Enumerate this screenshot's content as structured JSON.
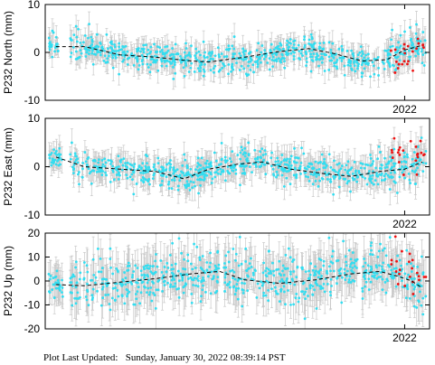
{
  "chart_data": [
    {
      "type": "scatter",
      "station": "P232",
      "ylabel": "P232 North (mm)",
      "ylim": [
        -10,
        10
      ],
      "yticks": [
        10,
        0,
        -10
      ],
      "xtick_label": "2022",
      "colors": {
        "points": "#33ddf0",
        "recent": "#ee1111",
        "errorbars": "#c8c8c8",
        "trend": "#000000"
      },
      "trend": [
        [
          2012.2,
          1.2
        ],
        [
          2013.0,
          1.2
        ],
        [
          2014.0,
          -0.5
        ],
        [
          2015.0,
          -1.0
        ],
        [
          2016.0,
          -1.8
        ],
        [
          2016.5,
          -2.0
        ],
        [
          2017.5,
          -1.0
        ],
        [
          2018.5,
          0.2
        ],
        [
          2019.3,
          0.8
        ],
        [
          2020.0,
          -0.2
        ],
        [
          2020.8,
          -1.8
        ],
        [
          2021.5,
          -1.5
        ],
        [
          2022.0,
          0.5
        ],
        [
          2022.5,
          1.5
        ]
      ],
      "sections": [
        {
          "x": [
            2012.0,
            2012.3
          ],
          "center": 2.5,
          "spread": 1.2,
          "err": 1.8,
          "color": "points"
        },
        {
          "x": [
            2012.6,
            2017.5
          ],
          "center": -1.0,
          "spread": 1.5,
          "err": 2.0,
          "color": "points"
        },
        {
          "x": [
            2017.5,
            2021.3
          ],
          "center": -0.5,
          "spread": 1.4,
          "err": 2.0,
          "color": "points"
        },
        {
          "x": [
            2021.3,
            2022.6
          ],
          "center": 1.0,
          "spread": 1.8,
          "err": 2.2,
          "color": "points"
        },
        {
          "x": [
            2021.6,
            2022.6
          ],
          "center": -0.5,
          "spread": 2.0,
          "err": 2.0,
          "color": "recent"
        }
      ]
    },
    {
      "type": "scatter",
      "station": "P232",
      "ylabel": "P232 East (mm)",
      "ylim": [
        -10,
        10
      ],
      "yticks": [
        10,
        0,
        -10
      ],
      "xtick_label": "2022",
      "colors": {
        "points": "#33ddf0",
        "recent": "#ee1111",
        "errorbars": "#c8c8c8",
        "trend": "#000000"
      },
      "trend": [
        [
          2012.2,
          2.0
        ],
        [
          2013.0,
          0.0
        ],
        [
          2014.0,
          -0.5
        ],
        [
          2015.0,
          -1.0
        ],
        [
          2015.8,
          -2.5
        ],
        [
          2016.5,
          -0.5
        ],
        [
          2017.3,
          0.5
        ],
        [
          2018.0,
          1.0
        ],
        [
          2018.8,
          -0.5
        ],
        [
          2019.8,
          -1.5
        ],
        [
          2020.5,
          -2.0
        ],
        [
          2021.3,
          -1.0
        ],
        [
          2022.0,
          -0.5
        ],
        [
          2022.5,
          1.0
        ]
      ],
      "sections": [
        {
          "x": [
            2012.0,
            2012.4
          ],
          "center": 2.2,
          "spread": 1.2,
          "err": 2.0,
          "color": "points"
        },
        {
          "x": [
            2012.6,
            2017.5
          ],
          "center": -1.0,
          "spread": 1.5,
          "err": 2.2,
          "color": "points"
        },
        {
          "x": [
            2017.5,
            2021.5
          ],
          "center": -0.5,
          "spread": 1.5,
          "err": 2.2,
          "color": "points"
        },
        {
          "x": [
            2021.5,
            2022.6
          ],
          "center": 0.5,
          "spread": 1.8,
          "err": 2.4,
          "color": "points"
        },
        {
          "x": [
            2021.6,
            2022.6
          ],
          "center": 1.5,
          "spread": 2.2,
          "err": 2.2,
          "color": "recent"
        }
      ]
    },
    {
      "type": "scatter",
      "station": "P232",
      "ylabel": "P232 Up (mm)",
      "ylim": [
        -20,
        20
      ],
      "yticks": [
        20,
        10,
        0,
        -10,
        -20
      ],
      "xtick_label": "2022",
      "colors": {
        "points": "#33ddf0",
        "recent": "#ee1111",
        "errorbars": "#c8c8c8",
        "trend": "#000000"
      },
      "trend": [
        [
          2012.2,
          -1.5
        ],
        [
          2013.0,
          -2.0
        ],
        [
          2014.0,
          -0.5
        ],
        [
          2015.0,
          1.0
        ],
        [
          2016.0,
          3.0
        ],
        [
          2016.8,
          4.0
        ],
        [
          2017.5,
          0.5
        ],
        [
          2018.5,
          -1.0
        ],
        [
          2019.5,
          0.5
        ],
        [
          2020.5,
          3.0
        ],
        [
          2021.3,
          4.0
        ],
        [
          2021.8,
          2.0
        ],
        [
          2022.2,
          0.0
        ],
        [
          2022.5,
          -3.0
        ]
      ],
      "sections": [
        {
          "x": [
            2012.0,
            2012.4
          ],
          "center": -3.0,
          "spread": 3.0,
          "err": 6.0,
          "color": "points"
        },
        {
          "x": [
            2012.6,
            2017.5
          ],
          "center": 0.0,
          "spread": 5.0,
          "err": 7.0,
          "color": "points"
        },
        {
          "x": [
            2017.5,
            2021.5
          ],
          "center": 3.0,
          "spread": 5.0,
          "err": 7.0,
          "color": "points"
        },
        {
          "x": [
            2021.5,
            2022.6
          ],
          "center": 3.0,
          "spread": 5.0,
          "err": 7.0,
          "color": "points"
        },
        {
          "x": [
            2021.6,
            2022.6
          ],
          "center": 2.0,
          "spread": 5.0,
          "err": 6.0,
          "color": "recent"
        }
      ]
    }
  ],
  "footer": "Plot Last Updated:   Sunday, January 30, 2022 08:39:14 PST"
}
